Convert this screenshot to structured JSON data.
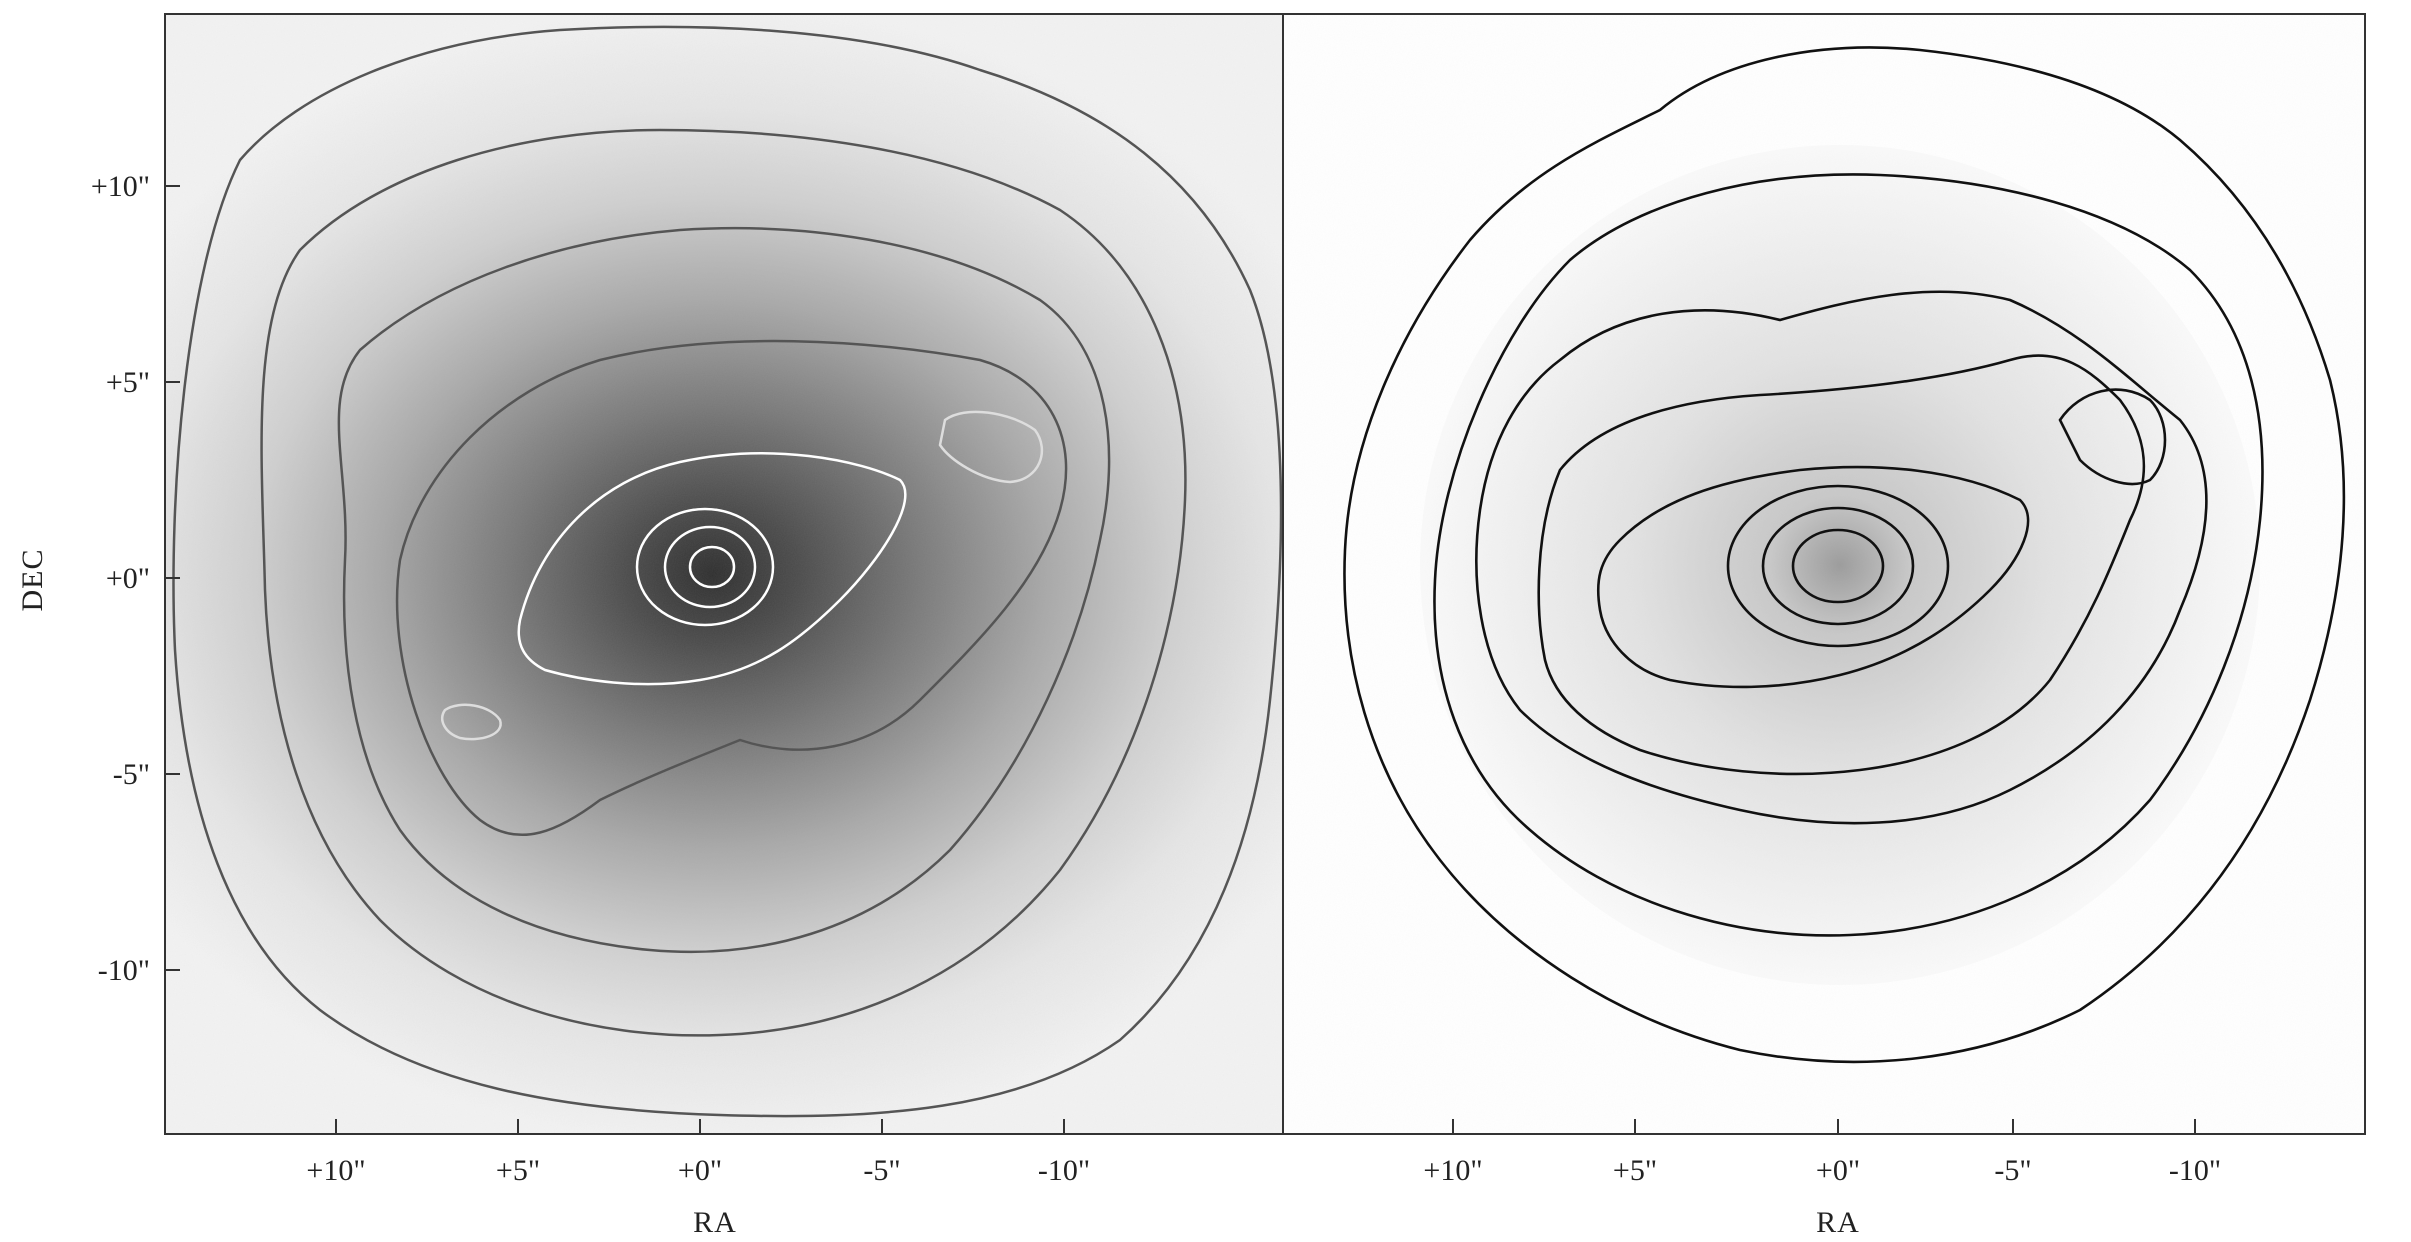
{
  "figure": {
    "panels": [
      {
        "id": "left",
        "description_label": "left-panel",
        "x_ticks": [
          "+10\"",
          "+5\"",
          "+0\"",
          "-5\"",
          "-10\""
        ],
        "y_ticks": [
          "+10\"",
          "+5\"",
          "+0\"",
          "-5\"",
          "-10\""
        ],
        "xlabel": "RA",
        "ylabel": "DEC",
        "contour_colors": [
          "#ffffff",
          "#ffffff",
          "#ffffff",
          "#dddddd",
          "#444444",
          "#555555",
          "#666666",
          "#777777"
        ]
      },
      {
        "id": "right",
        "description_label": "right-panel",
        "x_ticks": [
          "+10\"",
          "+5\"",
          "+0\"",
          "-5\"",
          "-10\""
        ],
        "xlabel": "RA",
        "contour_colors": [
          "#111111"
        ]
      }
    ]
  },
  "colors": {
    "background": "#ffffff",
    "frame": "#333333",
    "greyscale_core": "#3a3a3a",
    "greyscale_outer": "#e8e8e8"
  }
}
